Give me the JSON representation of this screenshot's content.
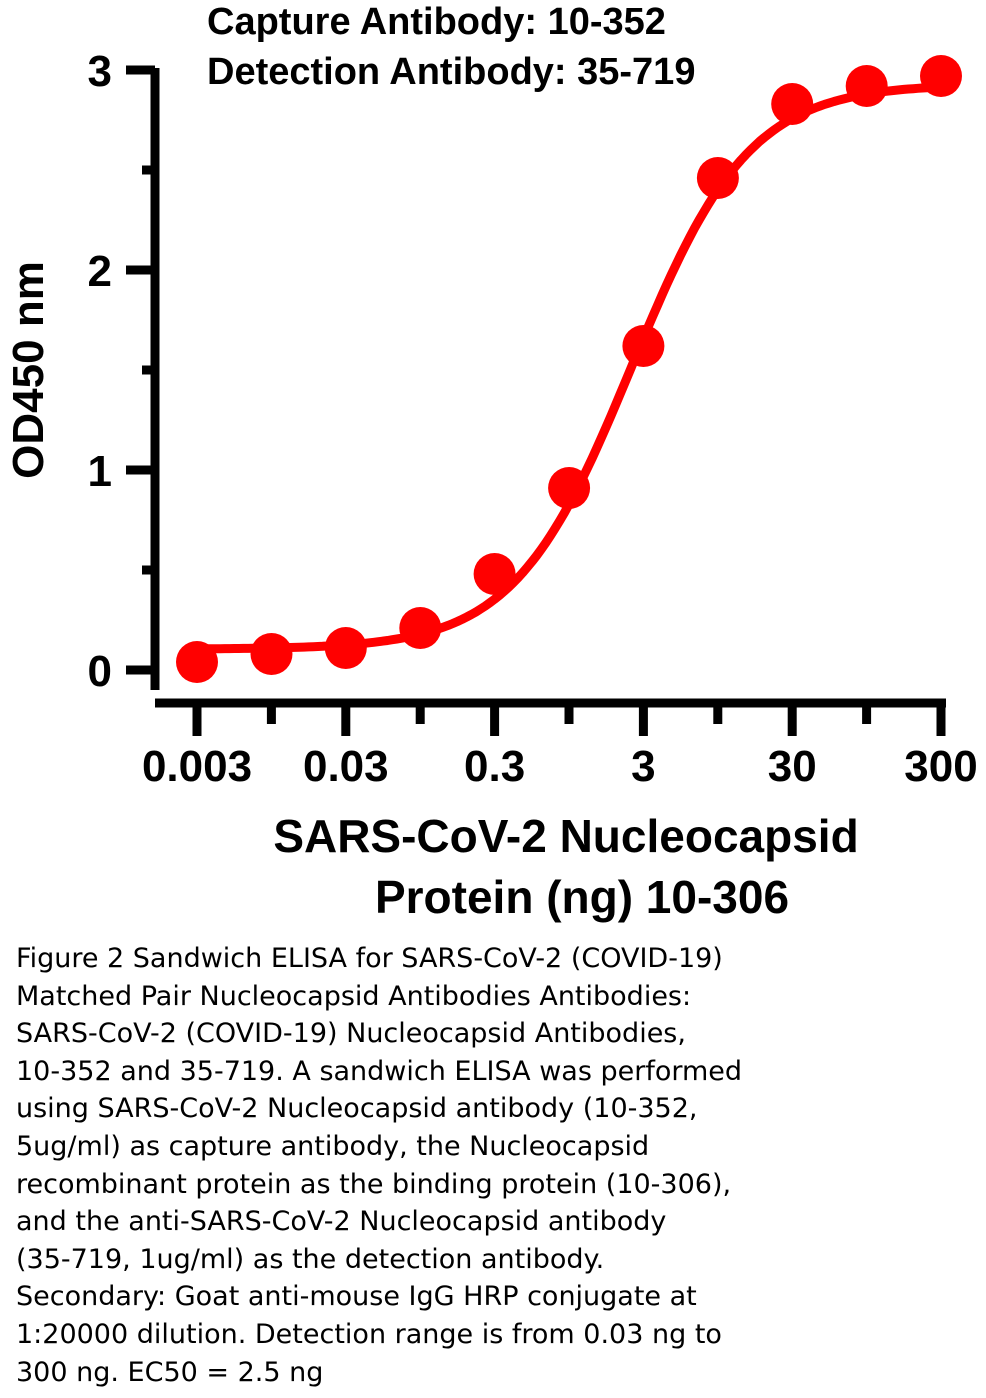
{
  "chart_data": {
    "type": "line",
    "title_lines": [
      "Capture Antibody: 10-352",
      "Detection Antibody: 35-719"
    ],
    "ylabel": "OD450 nm",
    "xlabel_lines": [
      "SARS-CoV-2 Nucleocapsid",
      "Protein (ng) 10-306"
    ],
    "x_scale": "log",
    "xlim": [
      0.003,
      300
    ],
    "ylim": [
      0,
      3
    ],
    "x_ticks": [
      "0.003",
      "0.03",
      "0.3",
      "3",
      "30",
      "300"
    ],
    "y_ticks": [
      "0",
      "1",
      "2",
      "3"
    ],
    "grid": false,
    "color": "#ff0000",
    "series": [
      {
        "x": [
          0.003,
          0.0095,
          0.03,
          0.095,
          0.3,
          0.95,
          3,
          9.5,
          30,
          95,
          300
        ],
        "y": [
          0.04,
          0.08,
          0.11,
          0.21,
          0.48,
          0.91,
          1.62,
          2.46,
          2.83,
          2.92,
          2.97
        ]
      }
    ]
  },
  "caption_lines": [
    "Figure 2 Sandwich ELISA for SARS-CoV-2 (COVID-19)",
    "Matched Pair Nucleocapsid Antibodies Antibodies:",
    "SARS-CoV-2 (COVID-19) Nucleocapsid Antibodies,",
    "10-352 and 35-719. A sandwich ELISA was performed",
    "using SARS-CoV-2 Nucleocapsid antibody (10-352,",
    "5ug/ml) as capture antibody, the Nucleocapsid",
    "recombinant protein as the binding protein (10-306),",
    "and the anti-SARS-CoV-2 Nucleocapsid antibody",
    "(35-719, 1ug/ml) as the detection antibody.",
    "Secondary: Goat anti-mouse IgG HRP conjugate at",
    "1:20000 dilution. Detection range is from 0.03 ng to",
    "300 ng. EC50 = 2.5 ng"
  ]
}
